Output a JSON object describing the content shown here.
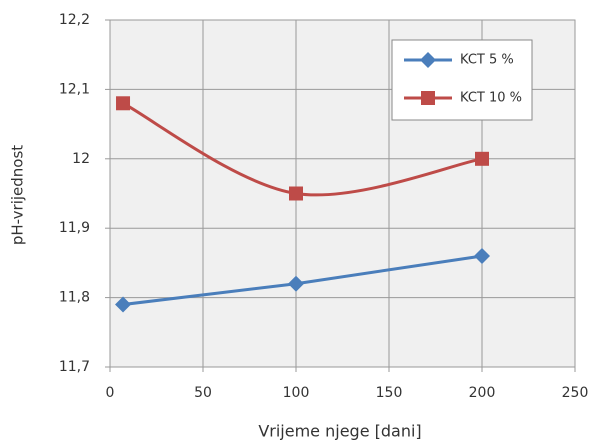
{
  "chart_data": {
    "type": "line",
    "x_label": "Vrijeme njege [dani]",
    "y_label": "pH-vrijednost",
    "x": [
      7,
      100,
      200
    ],
    "series": [
      {
        "name": "KCT 5 %",
        "color": "#4a7ebb",
        "marker": "diamond",
        "smooth": false,
        "values": [
          11.79,
          11.82,
          11.86
        ]
      },
      {
        "name": "KCT 10 %",
        "color": "#be4b48",
        "marker": "square",
        "smooth": true,
        "values": [
          12.08,
          11.95,
          12.0
        ]
      }
    ],
    "xlim": [
      0,
      250
    ],
    "xticks": [
      0,
      50,
      100,
      150,
      200,
      250
    ],
    "ylim": [
      11.7,
      12.2
    ],
    "yticks": [
      {
        "value": 11.7,
        "label": "11,7"
      },
      {
        "value": 11.8,
        "label": "11,8"
      },
      {
        "value": 11.9,
        "label": "11,9"
      },
      12,
      {
        "value": 12.1,
        "label": "12,1"
      },
      {
        "value": 12.2,
        "label": "12,2"
      }
    ],
    "grid": true,
    "legend": "upper right"
  }
}
